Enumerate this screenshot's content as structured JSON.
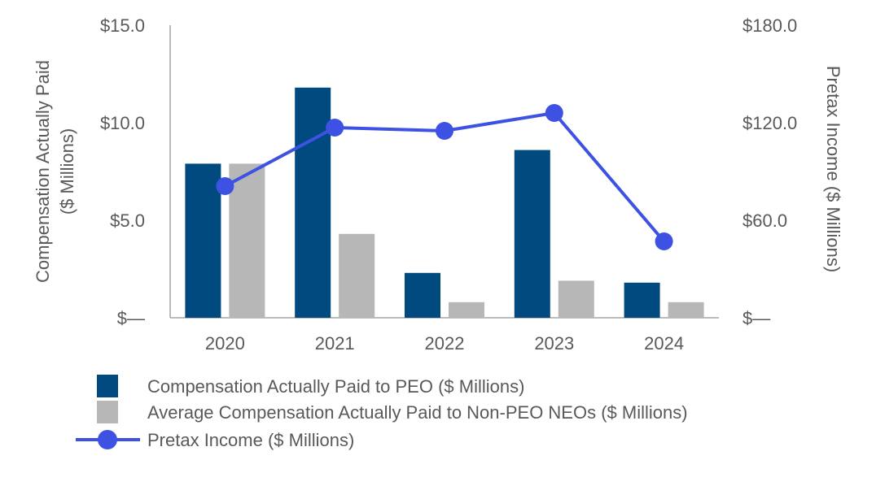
{
  "chart_data": {
    "type": "bar",
    "categories": [
      "2020",
      "2021",
      "2022",
      "2023",
      "2024"
    ],
    "series": [
      {
        "name": "Compensation Actually Paid to PEO ($ Millions)",
        "kind": "bar",
        "axis": "left",
        "color": "#004a80",
        "values": [
          7.9,
          11.8,
          2.3,
          8.6,
          1.8
        ]
      },
      {
        "name": "Average Compensation Actually Paid to Non-PEO NEOs ($ Millions)",
        "kind": "bar",
        "axis": "left",
        "color": "#b7b7b7",
        "values": [
          7.9,
          4.3,
          0.8,
          1.9,
          0.8
        ]
      },
      {
        "name": "Pretax Income ($ Millions)",
        "kind": "line",
        "axis": "right",
        "color": "#3d52e3",
        "values": [
          81,
          117,
          115,
          126,
          47
        ]
      }
    ],
    "y_left": {
      "label_line1": "Compensation Actually Paid",
      "label_line2": "($ Millions)",
      "ylim": [
        0,
        15
      ],
      "ticks": [
        0,
        5,
        10,
        15
      ],
      "tick_labels": [
        "$—",
        "$5.0",
        "$10.0",
        "$15.0"
      ]
    },
    "y_right": {
      "label": "Pretax Income ($ Millions)",
      "ylim": [
        0,
        180
      ],
      "ticks": [
        0,
        60,
        120,
        180
      ],
      "tick_labels": [
        "$—",
        "$60.0",
        "$120.0",
        "$180.0"
      ]
    },
    "legend_position": "bottom-left",
    "grid": false
  }
}
